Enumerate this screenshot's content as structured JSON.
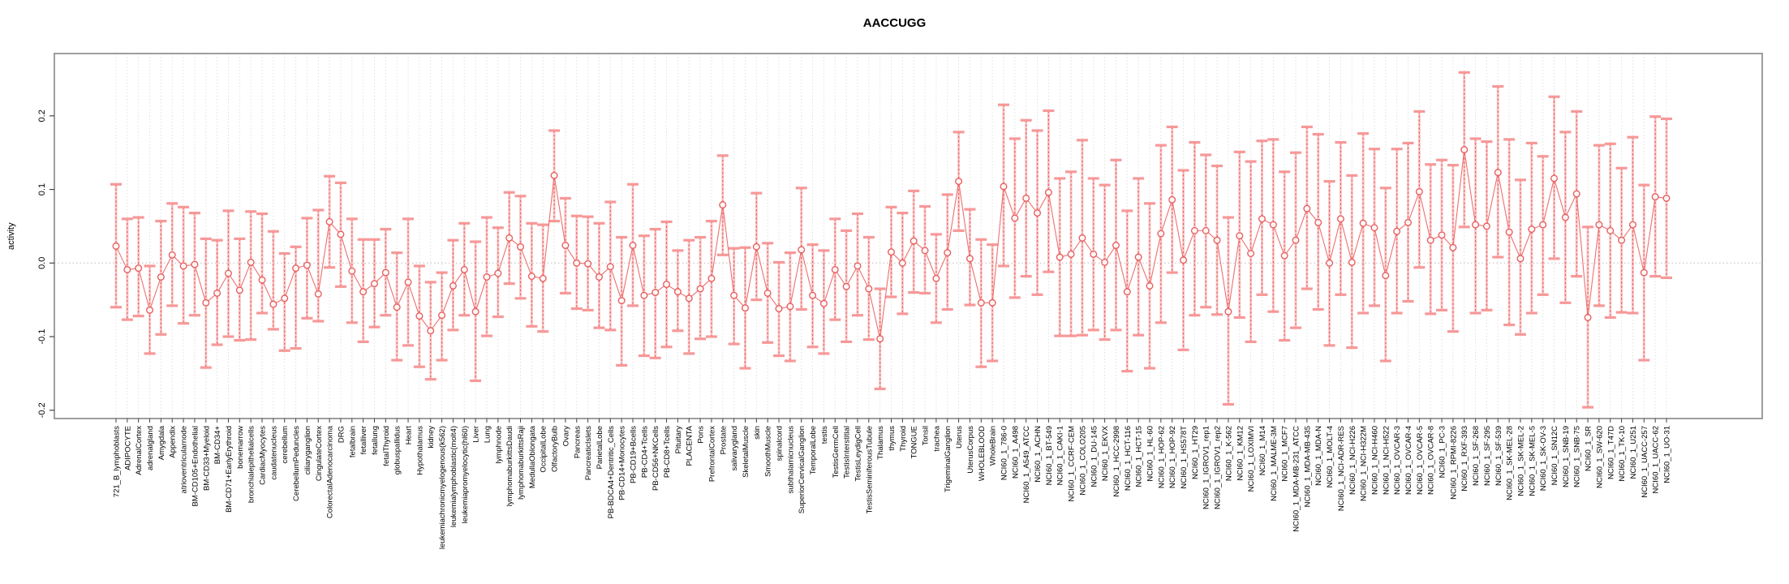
{
  "title": "AACCUGG",
  "colors": {
    "point": "#e85e5e",
    "line": "#ee6f6f",
    "errorbar_stem": "#e86060",
    "errorbar_stem_soft": "#f79c9c",
    "errorbar_cap": "#f79898",
    "grid": "#dedede",
    "zero_line": "#bbbbbb",
    "box": "#7f7f7f",
    "tick": "#444444",
    "text": "#000000",
    "background": "#ffffff"
  },
  "chart_data": {
    "type": "scatter",
    "title": "AACCUGG",
    "xlabel": "",
    "ylabel": "activity",
    "ylim": [
      -0.2113,
      0.2847
    ],
    "yticks": [
      -0.2,
      -0.1,
      0.0,
      0.1,
      0.2
    ],
    "grid": {
      "vertical": "dashed line per category",
      "horizontal": "dotted line at zero"
    },
    "legend": "none",
    "marker": "open-circle",
    "error_bars": true,
    "categories": [
      "721_B_lymphoblasts",
      "ADIPOCYTE",
      "AdrenalCortex",
      "adrenalgland",
      "Amygdala",
      "Appendix",
      "atrioventricularnode",
      "BM-CD105+Endothelial",
      "BM-CD33+Myeloid",
      "BM-CD34+",
      "BM-CD71+EarlyErythroid",
      "bonemarrow",
      "bronchialepithelialcells",
      "CardiacMyocytes",
      "caudatenucleus",
      "cerebellum",
      "CerebellumPeduncles",
      "ciliaryganglion",
      "CingulateCortex",
      "ColorectalAdenocarcinoma",
      "DRG",
      "fetalbrain",
      "fetalliver",
      "fetallung",
      "fetalThyroid",
      "globuspallidus",
      "Heart",
      "Hypothalamus",
      "kidney",
      "leukemiachronicmyelogenous(k562)",
      "leukemialymphoblastic(molt4)",
      "leukemiapromyelocytic(hl60)",
      "Liver",
      "Lung",
      "lymphnode",
      "lymphomaburkittsDaudi",
      "lymphomaburkittsRaji",
      "MedullaOblongata",
      "OccipitalLobe",
      "OlfactoryBulb",
      "Ovary",
      "Pancreas",
      "PancreaticIslets",
      "ParietalLobe",
      "PB-BDCA4+Dentritic_Cells",
      "PB-CD14+Monocytes",
      "PB-CD19+Bcells",
      "PB-CD4+Tcells",
      "PB-CD56+NKCells",
      "PB-CD8+Tcells",
      "Pituitary",
      "PLACENTA",
      "Pons",
      "PrefrontalCortex",
      "Prostate",
      "salivarygland",
      "SkeletalMuscle",
      "skin",
      "SmoothMuscle",
      "spinalcord",
      "subthalamicnucleus",
      "SuperiorCervicalGanglion",
      "TemporalLobe",
      "testis",
      "TestisGermCell",
      "TestisInterstitial",
      "TestisLeydigCell",
      "TestisSeminiferousTubule",
      "Thalamus",
      "thymus",
      "Thyroid",
      "TONGUE",
      "Tonsil",
      "trachea",
      "TrigeminalGanglion",
      "Uterus",
      "UterusCorpus",
      "WHOLEBLOOD",
      "WholeBrain",
      "NCI60_1_786-0",
      "NCI60_1_A498",
      "NCI60_1_A549_ATCC",
      "NCI60_1_ACHN",
      "NCI60_1_BT-549",
      "NCI60_1_CAKI-1",
      "NCI60_1_CCRF-CEM",
      "NCI60_1_COLO205",
      "NCI60_1_DU-145",
      "NCI60_1_EKVX",
      "NCI60_1_HCC-2998",
      "NCI60_1_HCT-116",
      "NCI60_1_HCT-15",
      "NCI60_1_HL-60",
      "NCI60_1_HOP-62",
      "NCI60_1_HOP-92",
      "NCI60_1_HS578T",
      "NCI60_1_HT29",
      "NCI60_1_IGROV1_rep1",
      "NCI60_1_IGROV1_rep2",
      "NCI60_1_K-562",
      "NCI60_1_KM12",
      "NCI60_1_LOXIMVI",
      "NCI60_1_M14",
      "NCI60_1_MALME-3M",
      "NCI60_1_MCF7",
      "NCI60_1_MDA-MB-231_ATCC",
      "NCI60_1_MDA-MB-435",
      "NCI60_1_MDA-N",
      "NCI60_1_MOLT-4",
      "NCI60_1_NCI-ADR-RES",
      "NCI60_1_NCI-H226",
      "NCI60_1_NCI-H322M",
      "NCI60_1_NCI-H460",
      "NCI60_1_NCI-H522",
      "NCI60_1_OVCAR-3",
      "NCI60_1_OVCAR-4",
      "NCI60_1_OVCAR-5",
      "NCI60_1_OVCAR-8",
      "NCI60_1_PC-3",
      "NCI60_1_RPMI-8226",
      "NCI60_1_RXF-393",
      "NCI60_1_SF-268",
      "NCI60_1_SF-295",
      "NCI60_1_SF-539",
      "NCI60_1_SK-MEL-28",
      "NCI60_1_SK-MEL-2",
      "NCI60_1_SK-MEL-5",
      "NCI60_1_SK-OV-3",
      "NCI60_1_SN12C",
      "NCI60_1_SNB-19",
      "NCI60_1_SNB-75",
      "NCI60_1_SR",
      "NCI60_1_SW-620",
      "NCI60_1_T47D",
      "NCI60_1_TK-10",
      "NCI60_1_U251",
      "NCI60_1_UACC-257",
      "NCI60_1_UACC-62",
      "NCI60_1_UO-31"
    ],
    "series": [
      {
        "name": "activity",
        "values": [
          0.023,
          -0.009,
          -0.007,
          -0.064,
          -0.019,
          0.011,
          -0.004,
          -0.002,
          -0.054,
          -0.041,
          -0.014,
          -0.037,
          0.001,
          -0.023,
          -0.056,
          -0.048,
          -0.007,
          -0.003,
          -0.042,
          0.056,
          0.039,
          -0.011,
          -0.039,
          -0.028,
          -0.013,
          -0.06,
          -0.026,
          -0.072,
          -0.092,
          -0.071,
          -0.031,
          -0.009,
          -0.066,
          -0.019,
          -0.014,
          0.034,
          0.022,
          -0.018,
          -0.021,
          0.119,
          0.024,
          0.0,
          -0.001,
          -0.019,
          -0.005,
          -0.051,
          0.024,
          -0.044,
          -0.04,
          -0.029,
          -0.039,
          -0.048,
          -0.035,
          -0.021,
          0.079,
          -0.044,
          -0.061,
          0.022,
          -0.041,
          -0.062,
          -0.059,
          0.018,
          -0.044,
          -0.055,
          -0.009,
          -0.032,
          -0.004,
          -0.035,
          -0.103,
          0.015,
          0.0,
          0.03,
          0.017,
          -0.021,
          0.014,
          0.111,
          0.006,
          -0.054,
          -0.054,
          0.104,
          0.061,
          0.088,
          0.068,
          0.096,
          0.008,
          0.012,
          0.034,
          0.012,
          0.001,
          0.024,
          -0.039,
          0.008,
          -0.031,
          0.04,
          0.086,
          0.004,
          0.044,
          0.044,
          0.031,
          -0.066,
          0.037,
          0.013,
          0.06,
          0.052,
          0.01,
          0.031,
          0.074,
          0.055,
          0.0,
          0.06,
          0.001,
          0.054,
          0.048,
          -0.017,
          0.043,
          0.055,
          0.097,
          0.031,
          0.038,
          0.021,
          0.154,
          0.052,
          0.05,
          0.123,
          0.042,
          0.006,
          0.046,
          0.052,
          0.115,
          0.062,
          0.094,
          -0.074,
          0.052,
          0.044,
          0.031,
          0.052,
          -0.013,
          0.09,
          0.088
        ],
        "lower": [
          -0.06,
          -0.077,
          -0.072,
          -0.123,
          -0.097,
          -0.058,
          -0.082,
          -0.071,
          -0.142,
          -0.111,
          -0.1,
          -0.105,
          -0.104,
          -0.068,
          -0.09,
          -0.119,
          -0.116,
          -0.075,
          -0.079,
          -0.006,
          -0.032,
          -0.081,
          -0.107,
          -0.087,
          -0.071,
          -0.132,
          -0.112,
          -0.141,
          -0.158,
          -0.132,
          -0.091,
          -0.071,
          -0.16,
          -0.099,
          -0.073,
          -0.028,
          -0.048,
          -0.086,
          -0.093,
          0.057,
          -0.041,
          -0.062,
          -0.064,
          -0.088,
          -0.091,
          -0.139,
          -0.058,
          -0.126,
          -0.129,
          -0.114,
          -0.092,
          -0.123,
          -0.103,
          -0.1,
          0.011,
          -0.11,
          -0.143,
          -0.05,
          -0.108,
          -0.126,
          -0.133,
          -0.063,
          -0.114,
          -0.123,
          -0.077,
          -0.107,
          -0.071,
          -0.104,
          -0.171,
          -0.046,
          -0.069,
          -0.04,
          -0.041,
          -0.081,
          -0.063,
          0.044,
          -0.057,
          -0.141,
          -0.133,
          -0.004,
          -0.047,
          -0.018,
          -0.043,
          -0.012,
          -0.099,
          -0.099,
          -0.098,
          -0.091,
          -0.104,
          -0.091,
          -0.147,
          -0.098,
          -0.143,
          -0.081,
          -0.013,
          -0.118,
          -0.071,
          -0.06,
          -0.07,
          -0.192,
          -0.074,
          -0.107,
          -0.043,
          -0.066,
          -0.105,
          -0.088,
          -0.035,
          -0.063,
          -0.112,
          -0.043,
          -0.115,
          -0.068,
          -0.058,
          -0.133,
          -0.068,
          -0.052,
          -0.006,
          -0.069,
          -0.064,
          -0.093,
          0.049,
          -0.068,
          -0.064,
          0.008,
          -0.084,
          -0.097,
          -0.068,
          -0.043,
          0.006,
          -0.054,
          -0.018,
          -0.196,
          -0.058,
          -0.074,
          -0.067,
          -0.068,
          -0.132,
          -0.018,
          -0.02
        ],
        "upper": [
          0.107,
          0.06,
          0.062,
          -0.004,
          0.057,
          0.081,
          0.076,
          0.068,
          0.033,
          0.031,
          0.071,
          0.033,
          0.07,
          0.067,
          0.043,
          0.013,
          0.022,
          0.061,
          0.072,
          0.118,
          0.109,
          0.06,
          0.032,
          0.032,
          0.046,
          0.014,
          0.06,
          -0.004,
          -0.026,
          -0.013,
          0.031,
          0.054,
          0.029,
          0.062,
          0.048,
          0.096,
          0.091,
          0.054,
          0.052,
          0.18,
          0.088,
          0.064,
          0.063,
          0.054,
          0.083,
          0.035,
          0.107,
          0.037,
          0.046,
          0.056,
          0.017,
          0.031,
          0.035,
          0.057,
          0.146,
          0.02,
          0.021,
          0.095,
          0.027,
          0.001,
          0.014,
          0.102,
          0.025,
          0.017,
          0.06,
          0.044,
          0.067,
          0.035,
          -0.035,
          0.076,
          0.068,
          0.098,
          0.077,
          0.039,
          0.093,
          0.178,
          0.073,
          0.032,
          0.025,
          0.215,
          0.169,
          0.194,
          0.18,
          0.207,
          0.115,
          0.124,
          0.167,
          0.115,
          0.106,
          0.14,
          0.071,
          0.115,
          0.081,
          0.16,
          0.185,
          0.126,
          0.164,
          0.147,
          0.132,
          0.062,
          0.151,
          0.138,
          0.166,
          0.168,
          0.124,
          0.15,
          0.185,
          0.175,
          0.111,
          0.164,
          0.119,
          0.176,
          0.155,
          0.102,
          0.155,
          0.163,
          0.206,
          0.134,
          0.14,
          0.133,
          0.259,
          0.169,
          0.165,
          0.24,
          0.168,
          0.113,
          0.163,
          0.145,
          0.226,
          0.178,
          0.206,
          0.049,
          0.16,
          0.162,
          0.129,
          0.171,
          0.106,
          0.199,
          0.196
        ]
      }
    ]
  }
}
